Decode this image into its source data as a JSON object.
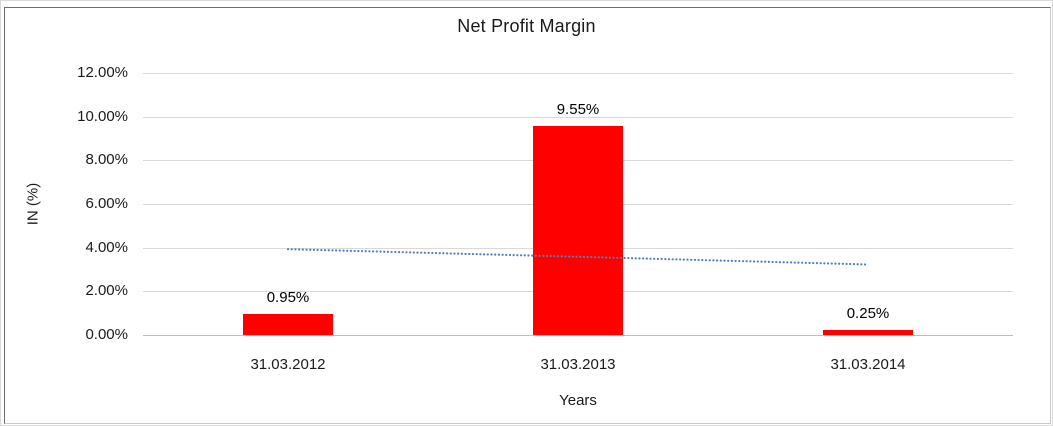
{
  "chart_data": {
    "type": "bar",
    "title": "Net Profit Margin",
    "xlabel": "Years",
    "ylabel": "IN (%)",
    "categories": [
      "31.03.2012",
      "31.03.2013",
      "31.03.2014"
    ],
    "series": [
      {
        "name": "Net Profit Margin",
        "type": "bar",
        "values": [
          0.95,
          9.55,
          0.25
        ],
        "data_labels": [
          "0.95%",
          "9.55%",
          "0.25%"
        ],
        "color": "#ff0000"
      },
      {
        "name": "linear-trendline",
        "type": "line",
        "line_style": "dotted",
        "values": [
          3.93,
          3.58,
          3.23
        ],
        "color": "#4f81bd"
      }
    ],
    "ylim": [
      0,
      12
    ],
    "yticks": [
      0,
      2,
      4,
      6,
      8,
      10,
      12
    ],
    "ytick_labels": [
      "0.00%",
      "2.00%",
      "4.00%",
      "6.00%",
      "8.00%",
      "10.00%",
      "12.00%"
    ],
    "grid": true,
    "legend": "none"
  },
  "colors": {
    "bar": "#ff0000",
    "trendline": "#4f81bd",
    "gridline": "#d9d9d9",
    "axis_line": "#bfbfbf",
    "text": "#1a1a1a",
    "frame_dark": "#6e6e6e",
    "frame_light": "#c9c9c9"
  }
}
